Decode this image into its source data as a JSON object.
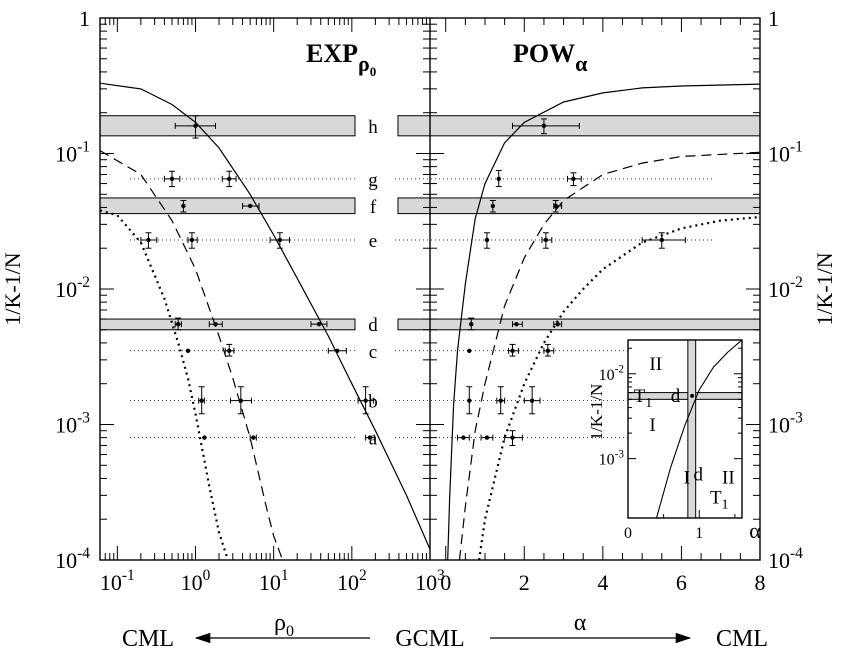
{
  "chart_data": {
    "type": "line",
    "ylabel": "1/K-1/N",
    "y_ticks": [
      {
        "v": 0.0001,
        "base": "10",
        "exp": "-4"
      },
      {
        "v": 0.001,
        "base": "10",
        "exp": "-3"
      },
      {
        "v": 0.01,
        "base": "10",
        "exp": "-2"
      },
      {
        "v": 0.1,
        "base": "10",
        "exp": "-1"
      },
      {
        "v": 1,
        "base": "1",
        "exp": ""
      }
    ],
    "ylim": [
      0.0001,
      1
    ],
    "log_y": true,
    "levels": [
      {
        "label": "h",
        "y": 0.16,
        "band": [
          0.135,
          0.19
        ]
      },
      {
        "label": "g",
        "y": 0.065
      },
      {
        "label": "f",
        "y": 0.041,
        "band": [
          0.036,
          0.047
        ]
      },
      {
        "label": "e",
        "y": 0.023
      },
      {
        "label": "d",
        "y": 0.0055,
        "band": [
          0.005,
          0.006
        ]
      },
      {
        "label": "c",
        "y": 0.0035
      },
      {
        "label": "b",
        "y": 0.0015
      },
      {
        "label": "a",
        "y": 0.0008
      }
    ],
    "panels": [
      {
        "name": "left",
        "title": {
          "main": "EXP",
          "sub": "ρ",
          "subsub": "0"
        },
        "log_x": true,
        "xlim": [
          0.06,
          1000
        ],
        "x_ticks": [
          {
            "v": 0.1,
            "base": "10",
            "exp": "-1"
          },
          {
            "v": 1,
            "base": "10",
            "exp": "0"
          },
          {
            "v": 10,
            "base": "10",
            "exp": "1"
          },
          {
            "v": 100,
            "base": "10",
            "exp": "2"
          },
          {
            "v": 1000,
            "base": "10",
            "exp": "3"
          }
        ],
        "series": [
          {
            "style": "solid",
            "x": [
              0.06,
              0.2,
              0.5,
              1,
              2,
              5,
              10,
              20,
              50,
              100,
              200,
              500,
              1000
            ],
            "y": [
              0.33,
              0.3,
              0.23,
              0.17,
              0.11,
              0.05,
              0.025,
              0.012,
              0.0045,
              0.002,
              0.0009,
              0.0003,
              0.00012
            ]
          },
          {
            "style": "dashed",
            "x": [
              0.06,
              0.2,
              0.5,
              1,
              2,
              3,
              5,
              8,
              10,
              13
            ],
            "y": [
              0.105,
              0.07,
              0.032,
              0.014,
              0.0045,
              0.0022,
              0.0008,
              0.00025,
              0.00015,
              0.0001
            ]
          },
          {
            "style": "dotted",
            "x": [
              0.06,
              0.1,
              0.2,
              0.4,
              0.6,
              0.8,
              1.0,
              1.5,
              2.0,
              2.6
            ],
            "y": [
              0.038,
              0.035,
              0.022,
              0.0085,
              0.004,
              0.0022,
              0.0012,
              0.00035,
              0.00016,
              0.0001
            ]
          }
        ],
        "points": [
          {
            "x": 1.0,
            "y": 0.16,
            "xerr": [
              0.55,
              1.8
            ],
            "yerr": [
              0.13,
              0.19
            ]
          },
          {
            "x": 0.5,
            "y": 0.065,
            "xerr": [
              0.4,
              0.63
            ],
            "yerr": [
              0.057,
              0.074
            ]
          },
          {
            "x": 2.7,
            "y": 0.065,
            "xerr": [
              2.2,
              3.3
            ],
            "yerr": [
              0.057,
              0.074
            ]
          },
          {
            "x": 0.7,
            "y": 0.041,
            "yerr": [
              0.037,
              0.045
            ]
          },
          {
            "x": 5,
            "y": 0.041,
            "xerr": [
              4,
              6.5
            ]
          },
          {
            "x": 0.25,
            "y": 0.023,
            "xerr": [
              0.2,
              0.32
            ],
            "yerr": [
              0.02,
              0.026
            ]
          },
          {
            "x": 0.9,
            "y": 0.023,
            "xerr": [
              0.8,
              1.05
            ],
            "yerr": [
              0.02,
              0.026
            ]
          },
          {
            "x": 12,
            "y": 0.023,
            "xerr": [
              9,
              16
            ],
            "yerr": [
              0.02,
              0.026
            ]
          },
          {
            "x": 0.6,
            "y": 0.0055,
            "xerr": [
              0.55,
              0.66
            ],
            "yerr": [
              0.005,
              0.0061
            ]
          },
          {
            "x": 1.8,
            "y": 0.0055,
            "xerr": [
              1.5,
              2.2
            ]
          },
          {
            "x": 38,
            "y": 0.0055,
            "xerr": [
              30,
              48
            ]
          },
          {
            "x": 0.8,
            "y": 0.0035
          },
          {
            "x": 2.7,
            "y": 0.0035,
            "xerr": [
              2.4,
              3.1
            ],
            "yerr": [
              0.0032,
              0.0039
            ]
          },
          {
            "x": 65,
            "y": 0.0035,
            "xerr": [
              50,
              85
            ]
          },
          {
            "x": 1.2,
            "y": 0.0015,
            "xerr": [
              1.1,
              1.3
            ],
            "yerr": [
              0.0012,
              0.0019
            ]
          },
          {
            "x": 3.8,
            "y": 0.0015,
            "xerr": [
              2.8,
              5.2
            ],
            "yerr": [
              0.0012,
              0.0019
            ]
          },
          {
            "x": 150,
            "y": 0.0015,
            "xerr": [
              120,
              190
            ],
            "yerr": [
              0.0012,
              0.0019
            ]
          },
          {
            "x": 1.3,
            "y": 0.0008
          },
          {
            "x": 5.5,
            "y": 0.0008,
            "xerr": [
              5,
              6
            ]
          },
          {
            "x": 170,
            "y": 0.0008,
            "xerr": [
              150,
              195
            ]
          }
        ]
      },
      {
        "name": "right",
        "title": {
          "main": "POW",
          "sub": "α",
          "subsub": ""
        },
        "log_x": false,
        "xlim": [
          -0.4,
          8
        ],
        "x_ticks": [
          {
            "v": 0,
            "base": "0",
            "exp": ""
          },
          {
            "v": 2,
            "base": "2",
            "exp": ""
          },
          {
            "v": 4,
            "base": "4",
            "exp": ""
          },
          {
            "v": 6,
            "base": "6",
            "exp": ""
          },
          {
            "v": 8,
            "base": "8",
            "exp": ""
          }
        ],
        "series": [
          {
            "style": "solid",
            "x": [
              0.05,
              0.1,
              0.2,
              0.3,
              0.5,
              0.75,
              1,
              1.5,
              2,
              3,
              4,
              5,
              6,
              8
            ],
            "y": [
              0.0001,
              0.00028,
              0.0014,
              0.0035,
              0.011,
              0.033,
              0.06,
              0.12,
              0.17,
              0.24,
              0.28,
              0.305,
              0.315,
              0.325
            ]
          },
          {
            "style": "dashed",
            "x": [
              0.35,
              0.5,
              0.75,
              1,
              1.5,
              2,
              2.5,
              3,
              4,
              5,
              6,
              8
            ],
            "y": [
              0.0001,
              0.00025,
              0.0009,
              0.002,
              0.0075,
              0.017,
              0.03,
              0.045,
              0.07,
              0.085,
              0.095,
              0.102
            ]
          },
          {
            "style": "dotted",
            "x": [
              0.85,
              1,
              1.5,
              2,
              2.5,
              3,
              3.5,
              4,
              5,
              6,
              7,
              8
            ],
            "y": [
              0.0001,
              0.0002,
              0.0008,
              0.002,
              0.004,
              0.0068,
              0.01,
              0.014,
              0.022,
              0.028,
              0.032,
              0.034
            ]
          }
        ],
        "points": [
          {
            "x": 2.5,
            "y": 0.16,
            "xerr": [
              1.7,
              3.4
            ],
            "yerr": [
              0.14,
              0.18
            ]
          },
          {
            "x": 1.35,
            "y": 0.065,
            "yerr": [
              0.057,
              0.075
            ]
          },
          {
            "x": 3.25,
            "y": 0.065,
            "xerr": [
              3.1,
              3.45
            ],
            "yerr": [
              0.058,
              0.072
            ]
          },
          {
            "x": 1.2,
            "y": 0.041,
            "yerr": [
              0.037,
              0.045
            ]
          },
          {
            "x": 2.8,
            "y": 0.041,
            "xerr": [
              2.75,
              2.95
            ],
            "yerr": [
              0.037,
              0.045
            ]
          },
          {
            "x": 1.05,
            "y": 0.023,
            "yerr": [
              0.02,
              0.026
            ]
          },
          {
            "x": 2.55,
            "y": 0.023,
            "xerr": [
              2.45,
              2.7
            ],
            "yerr": [
              0.02,
              0.026
            ]
          },
          {
            "x": 5.5,
            "y": 0.023,
            "xerr": [
              5.0,
              6.1
            ],
            "yerr": [
              0.02,
              0.026
            ]
          },
          {
            "x": 0.65,
            "y": 0.0055,
            "yerr": [
              0.005,
              0.0061
            ]
          },
          {
            "x": 1.8,
            "y": 0.0055,
            "xerr": [
              1.7,
              1.95
            ]
          },
          {
            "x": 2.85,
            "y": 0.0055,
            "xerr": [
              2.75,
              2.95
            ]
          },
          {
            "x": 0.6,
            "y": 0.0035
          },
          {
            "x": 1.7,
            "y": 0.0035,
            "xerr": [
              1.6,
              1.85
            ],
            "yerr": [
              0.0032,
              0.0039
            ]
          },
          {
            "x": 2.6,
            "y": 0.0035,
            "xerr": [
              2.5,
              2.75
            ],
            "yerr": [
              0.0032,
              0.0039
            ]
          },
          {
            "x": 0.6,
            "y": 0.0015,
            "yerr": [
              0.0012,
              0.0019
            ]
          },
          {
            "x": 1.4,
            "y": 0.0015,
            "xerr": [
              1.3,
              1.5
            ],
            "yerr": [
              0.0012,
              0.0019
            ]
          },
          {
            "x": 2.2,
            "y": 0.0015,
            "xerr": [
              2.0,
              2.4
            ],
            "yerr": [
              0.0012,
              0.0019
            ]
          },
          {
            "x": 0.45,
            "y": 0.0008,
            "xerr": [
              0.3,
              0.6
            ]
          },
          {
            "x": 1.05,
            "y": 0.0008,
            "xerr": [
              0.9,
              1.2
            ]
          },
          {
            "x": 1.7,
            "y": 0.0008,
            "xerr": [
              1.5,
              1.95
            ],
            "yerr": [
              0.0007,
              0.0009
            ]
          }
        ]
      }
    ],
    "inset": {
      "ylabel": "1/K-1/N",
      "xlabel": "α",
      "xlim": [
        0,
        1.6
      ],
      "ylim": [
        0.0002,
        0.025
      ],
      "x_ticks": [
        {
          "v": 0,
          "base": "0",
          "exp": ""
        },
        {
          "v": 1,
          "base": "1",
          "exp": ""
        }
      ],
      "y_ticks": [
        {
          "v": 0.001,
          "base": "10",
          "exp": "-3"
        },
        {
          "v": 0.01,
          "base": "10",
          "exp": "-2"
        }
      ],
      "band": [
        0.005,
        0.006
      ],
      "vband": [
        0.84,
        0.95
      ],
      "curve": {
        "x": [
          0.4,
          0.6,
          0.8,
          1.0,
          1.2,
          1.4,
          1.6
        ],
        "y": [
          0.0002,
          0.0008,
          0.0025,
          0.0065,
          0.012,
          0.018,
          0.025
        ]
      },
      "point": {
        "x": 0.9,
        "y": 0.0055
      },
      "labels": [
        {
          "text": "II",
          "x": 0.3,
          "y": 0.013
        },
        {
          "text": "T",
          "sub": "1",
          "x": 0.08,
          "y": 0.0055
        },
        {
          "text": "d",
          "x": 0.6,
          "y": 0.0055
        },
        {
          "text": "I",
          "x": 0.3,
          "y": 0.0025
        },
        {
          "text": "I",
          "x": 0.78,
          "y": 0.0006
        },
        {
          "text": "d",
          "x": 0.92,
          "y": 0.00065
        },
        {
          "text": "II",
          "x": 1.32,
          "y": 0.0006
        },
        {
          "text": "T",
          "sub": "1",
          "x": 1.15,
          "y": 0.00035
        }
      ]
    },
    "bottom_axis": {
      "left": "CML",
      "center": "GCML",
      "right": "CML",
      "left_param": "ρ",
      "left_param_sub": "0",
      "right_param": "α"
    }
  }
}
